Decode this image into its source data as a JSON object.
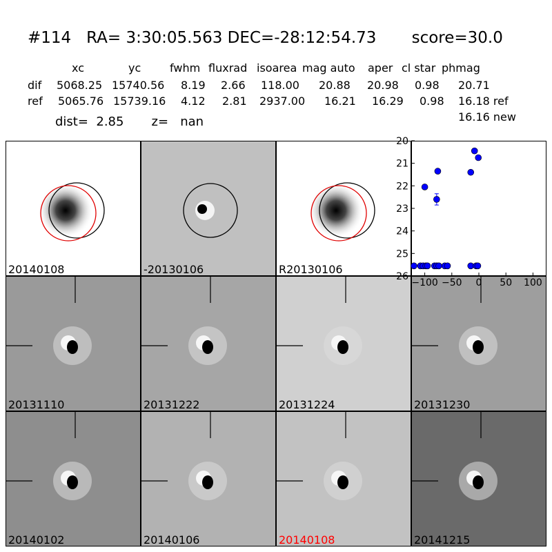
{
  "header": {
    "title": "#114   RA= 3:30:05.563 DEC=-28:12:54.73       score=30.0",
    "columns": [
      "xc",
      "yc",
      "fwhm",
      "fluxrad",
      "isoarea",
      "mag auto",
      "aper",
      "cl star",
      "phmag"
    ],
    "rows": [
      {
        "label": "dif",
        "values": [
          "5068.25",
          "15740.56",
          "8.19",
          "2.66",
          "118.00",
          "20.88",
          "20.98",
          "0.98",
          "20.71"
        ]
      },
      {
        "label": "ref",
        "values": [
          "5065.76",
          "15739.16",
          "4.12",
          "2.81",
          "2937.00",
          "16.21",
          "16.29",
          "0.98",
          "16.18 ref"
        ]
      }
    ],
    "extra_phmag": "16.16 new",
    "dist_text": "dist=  2.85       z=   nan"
  },
  "panels": [
    {
      "label": "20140108",
      "bg": "#ffffff",
      "kind": "circle-new"
    },
    {
      "label": "-20130106",
      "bg": "#c0c0c0",
      "kind": "circle-diff"
    },
    {
      "label": "R20130106",
      "bg": "#ffffff",
      "kind": "circle-ref"
    },
    {
      "label": "20131110",
      "bg": "#9a9a9a",
      "kind": "stamp"
    },
    {
      "label": "20131222",
      "bg": "#a6a6a6",
      "kind": "stamp"
    },
    {
      "label": "20131224",
      "bg": "#d0d0d0",
      "kind": "stamp"
    },
    {
      "label": "20131230",
      "bg": "#9e9e9e",
      "kind": "stamp"
    },
    {
      "label": "20140102",
      "bg": "#8e8e8e",
      "kind": "stamp"
    },
    {
      "label": "20140106",
      "bg": "#b2b2b2",
      "kind": "stamp"
    },
    {
      "label": "20140108",
      "bg": "#c2c2c2",
      "kind": "stamp",
      "highlight_color": "#ff0000"
    },
    {
      "label": "20141215",
      "bg": "#6a6a6a",
      "kind": "stamp"
    }
  ],
  "chart_data": {
    "type": "scatter",
    "xlim": [
      -125,
      125
    ],
    "ylim": [
      26,
      20
    ],
    "xticks": [
      -100,
      -50,
      0,
      50,
      100
    ],
    "xtick_labels": [
      "−100",
      "−50",
      "0",
      "50",
      "100"
    ],
    "yticks": [
      20,
      21,
      22,
      23,
      24,
      25,
      26
    ],
    "ytick_labels": [
      "20",
      "21",
      "22",
      "23",
      "24",
      "25",
      "26"
    ],
    "marker_color": "#0000ff",
    "points": [
      {
        "x": -120,
        "y": 25.55
      },
      {
        "x": -108,
        "y": 25.55
      },
      {
        "x": -103,
        "y": 25.55
      },
      {
        "x": -98,
        "y": 25.55
      },
      {
        "x": -95,
        "y": 25.55
      },
      {
        "x": -82,
        "y": 25.55
      },
      {
        "x": -78,
        "y": 25.55
      },
      {
        "x": -74,
        "y": 25.55
      },
      {
        "x": -63,
        "y": 25.55
      },
      {
        "x": -58,
        "y": 25.55
      },
      {
        "x": -15,
        "y": 25.55
      },
      {
        "x": -5,
        "y": 25.55
      },
      {
        "x": -2,
        "y": 25.55
      },
      {
        "x": -100,
        "y": 22.05
      },
      {
        "x": -76,
        "y": 21.35
      },
      {
        "x": -78,
        "y": 22.6,
        "err": 0.25
      },
      {
        "x": -15,
        "y": 21.4
      },
      {
        "x": -8,
        "y": 20.45
      },
      {
        "x": -1,
        "y": 20.75
      }
    ]
  }
}
